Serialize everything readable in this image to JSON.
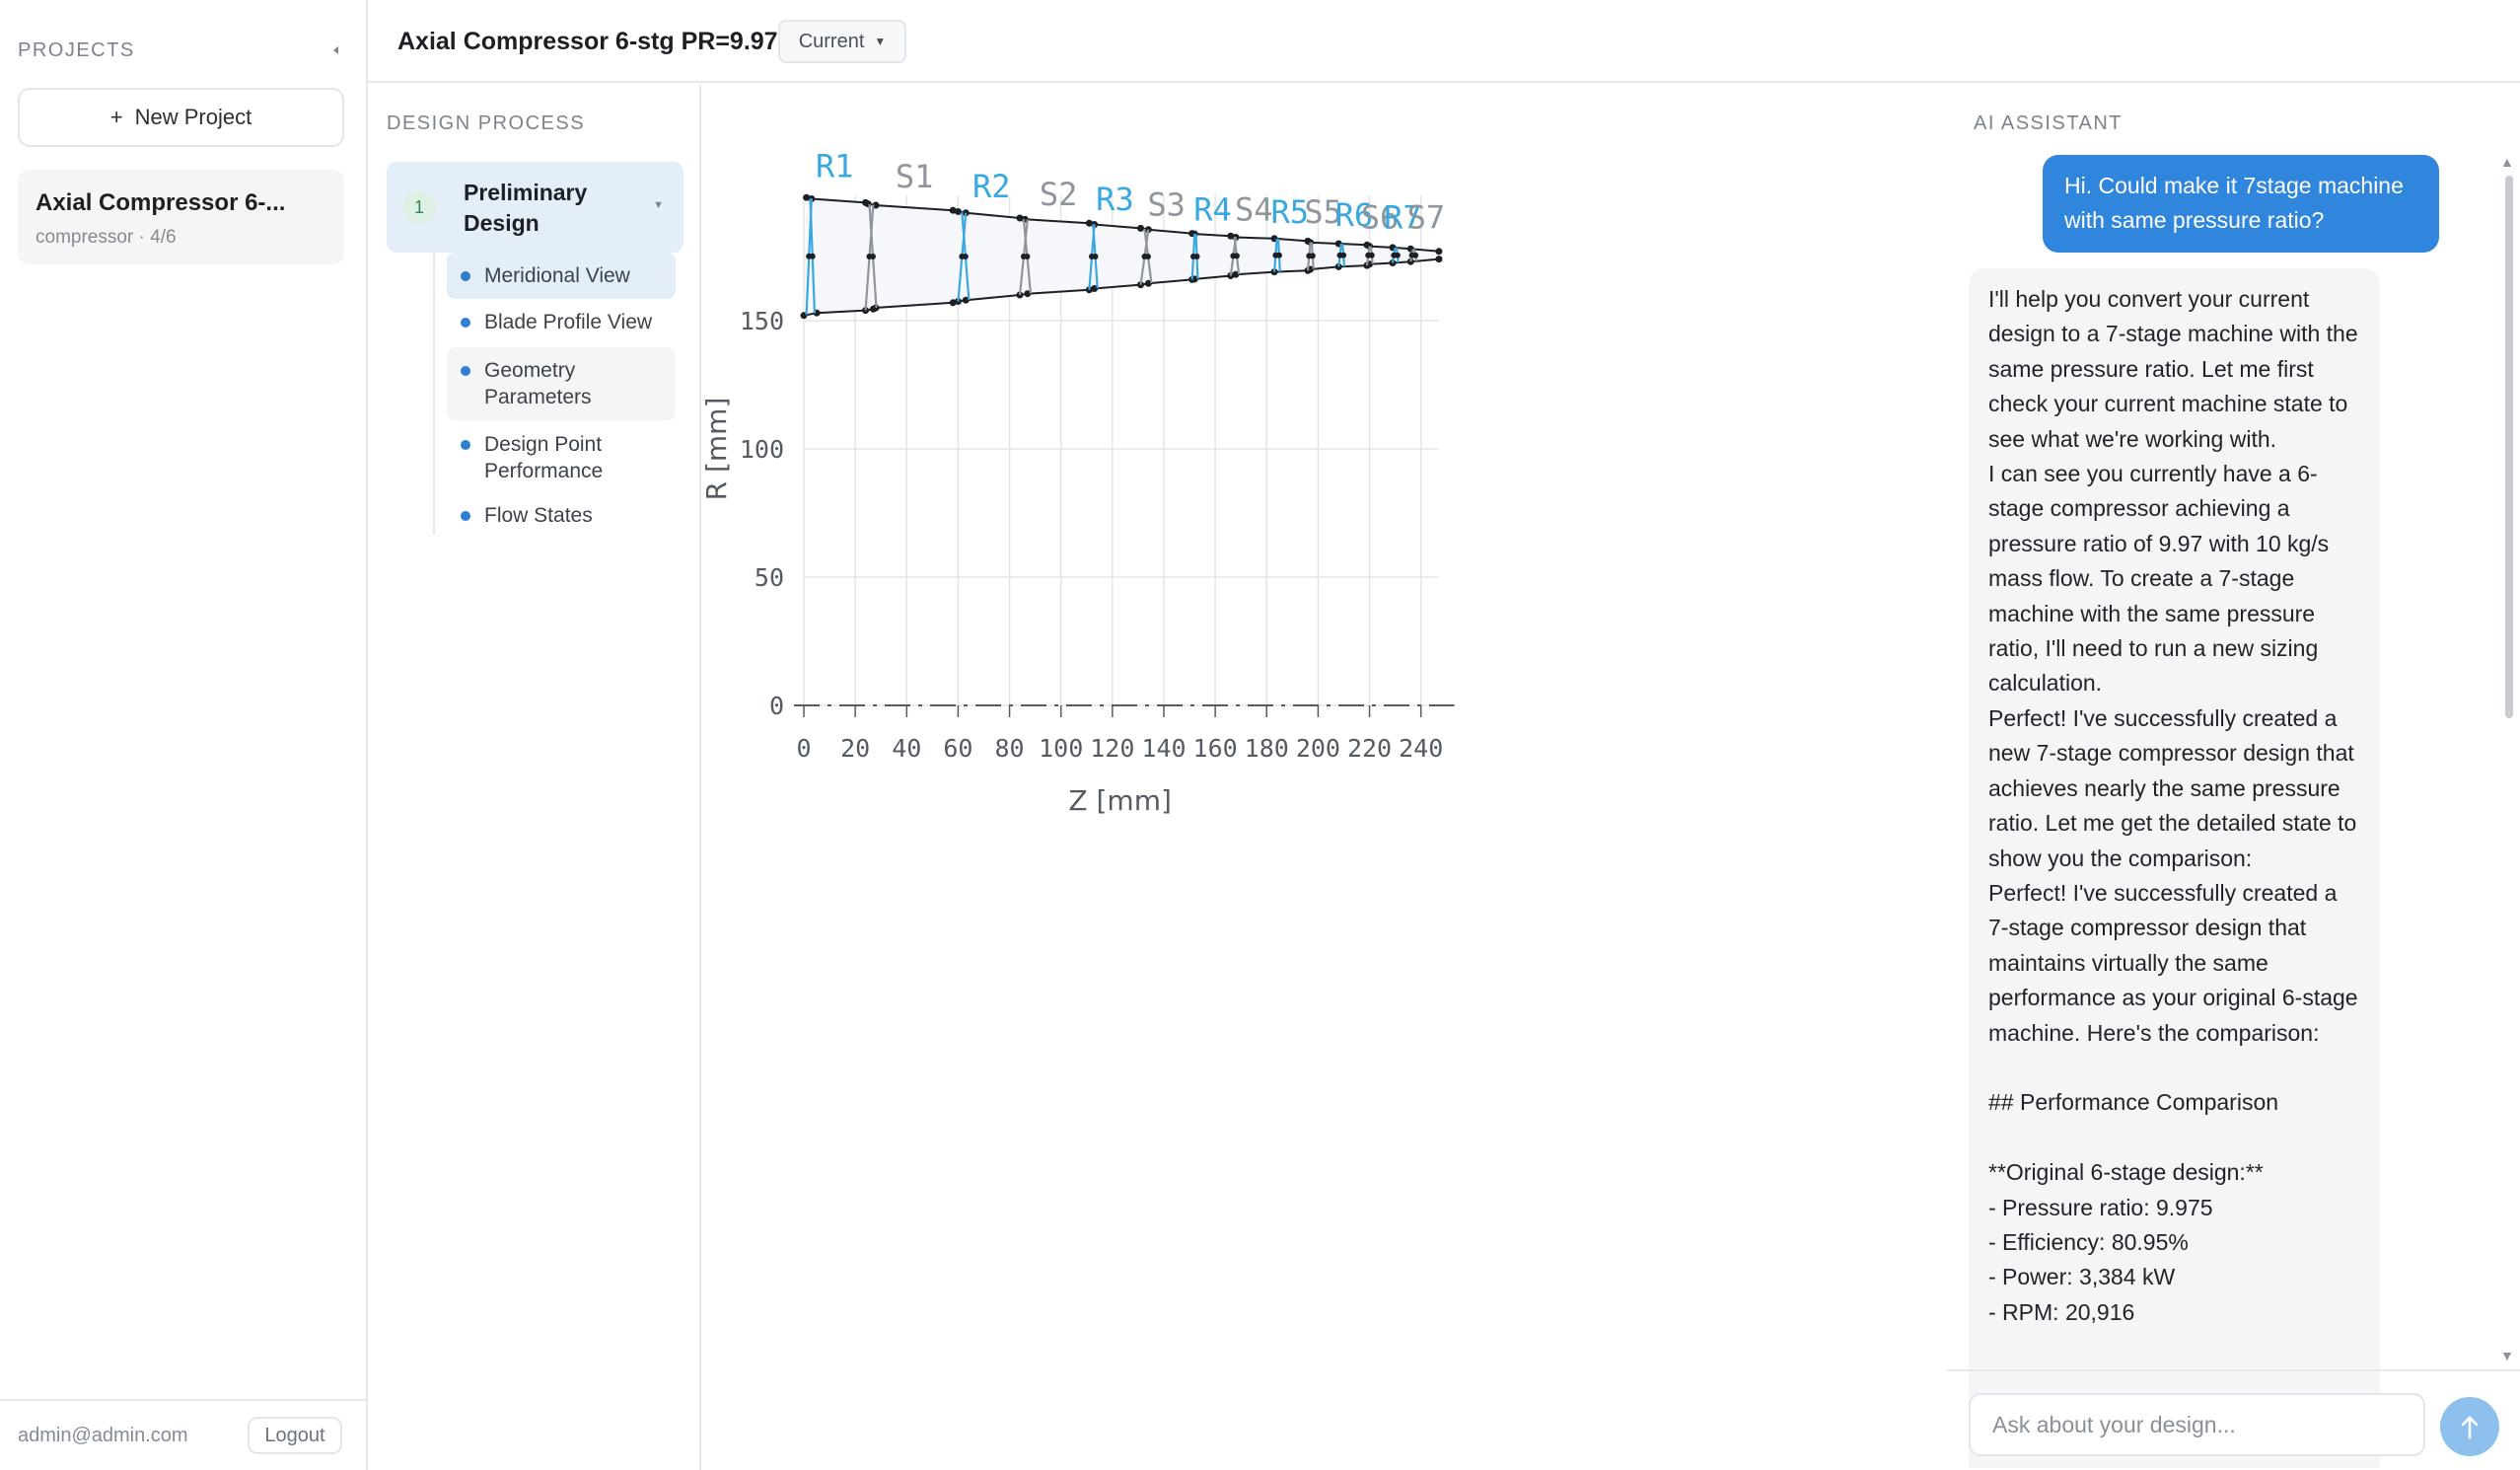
{
  "sidebar": {
    "title": "PROJECTS",
    "new_project_label": "New Project",
    "project": {
      "name": "Axial Compressor 6-...",
      "meta": "compressor · 4/6"
    },
    "user_email": "admin@admin.com",
    "logout_label": "Logout"
  },
  "topbar": {
    "title": "Axial Compressor 6-stg PR=9.97",
    "version": "Current"
  },
  "process": {
    "title": "DESIGN PROCESS",
    "stage": {
      "number": "1",
      "label": "Preliminary Design"
    },
    "items": [
      {
        "label": "Meridional View"
      },
      {
        "label": "Blade Profile View"
      },
      {
        "label": "Geometry Parameters"
      },
      {
        "label": "Design Point Performance"
      },
      {
        "label": "Flow States"
      }
    ]
  },
  "chart_data": {
    "type": "line",
    "title": "",
    "xlabel": "Z [mm]",
    "ylabel": "R [mm]",
    "xlim": [
      0,
      240
    ],
    "ylim": [
      0,
      150
    ],
    "xticks": [
      0,
      20,
      40,
      60,
      80,
      100,
      120,
      140,
      160,
      180,
      200,
      220,
      240
    ],
    "yticks": [
      0,
      50,
      100,
      150
    ],
    "grid": true,
    "colors": {
      "rotor": "#3aa8e0",
      "stator": "#8f959d",
      "annulus": "#1c1f24",
      "fill": "#f5f7fb"
    },
    "hub": [
      [
        0,
        152
      ],
      [
        5,
        153
      ],
      [
        24,
        154
      ],
      [
        27,
        154.5
      ],
      [
        28,
        155
      ],
      [
        58,
        157
      ],
      [
        60,
        157.5
      ],
      [
        63,
        158
      ],
      [
        84,
        160
      ],
      [
        87,
        160.5
      ],
      [
        111,
        162
      ],
      [
        113,
        162.5
      ],
      [
        131,
        164
      ],
      [
        134,
        164.5
      ],
      [
        151,
        166
      ],
      [
        152,
        166.2
      ],
      [
        166,
        167.5
      ],
      [
        168,
        168
      ],
      [
        183,
        169
      ],
      [
        196,
        169.5
      ],
      [
        197,
        170
      ],
      [
        208,
        171
      ],
      [
        219,
        171.5
      ],
      [
        220,
        172
      ],
      [
        229,
        172.5
      ],
      [
        236,
        173
      ],
      [
        247,
        174
      ]
    ],
    "shroud": [
      [
        1,
        198
      ],
      [
        3,
        197.5
      ],
      [
        24,
        196
      ],
      [
        25,
        195.5
      ],
      [
        28,
        195
      ],
      [
        58,
        193
      ],
      [
        60,
        192.5
      ],
      [
        63,
        192
      ],
      [
        84,
        190
      ],
      [
        86,
        189.5
      ],
      [
        111,
        188
      ],
      [
        113,
        187.5
      ],
      [
        131,
        186
      ],
      [
        134,
        185.5
      ],
      [
        151,
        184
      ],
      [
        152,
        183.8
      ],
      [
        166,
        183
      ],
      [
        168,
        182.5
      ],
      [
        183,
        182
      ],
      [
        196,
        181
      ],
      [
        197,
        180.5
      ],
      [
        208,
        180
      ],
      [
        219,
        179.5
      ],
      [
        220,
        179
      ],
      [
        229,
        178.5
      ],
      [
        236,
        178
      ],
      [
        247,
        177
      ]
    ],
    "rows": [
      {
        "name": "R1",
        "kind": "rotor",
        "z_le": 1,
        "z_te": 3
      },
      {
        "name": "S1",
        "kind": "stator",
        "z_le": 24,
        "z_te": 27
      },
      {
        "name": "R2",
        "kind": "rotor",
        "z_le": 60,
        "z_te": 63
      },
      {
        "name": "S2",
        "kind": "stator",
        "z_le": 84,
        "z_te": 87
      },
      {
        "name": "R3",
        "kind": "rotor",
        "z_le": 111,
        "z_te": 113
      },
      {
        "name": "S3",
        "kind": "stator",
        "z_le": 131,
        "z_te": 134
      },
      {
        "name": "R4",
        "kind": "rotor",
        "z_le": 151,
        "z_te": 152
      },
      {
        "name": "S4",
        "kind": "stator",
        "z_le": 166,
        "z_te": 168
      },
      {
        "name": "R5",
        "kind": "rotor",
        "z_le": 183,
        "z_te": 184
      },
      {
        "name": "S5",
        "kind": "stator",
        "z_le": 196,
        "z_te": 197
      },
      {
        "name": "R6",
        "kind": "rotor",
        "z_le": 208,
        "z_te": 209
      },
      {
        "name": "S6",
        "kind": "stator",
        "z_le": 219,
        "z_te": 220
      },
      {
        "name": "R7",
        "kind": "rotor",
        "z_le": 229,
        "z_te": 230
      },
      {
        "name": "S7",
        "kind": "stator",
        "z_le": 236,
        "z_te": 237
      }
    ],
    "label_positions": [
      [
        12,
        206
      ],
      [
        43,
        202
      ],
      [
        73,
        198
      ],
      [
        99,
        195
      ],
      [
        121,
        193
      ],
      [
        141,
        191
      ],
      [
        159,
        189
      ],
      [
        175,
        189
      ],
      [
        189,
        188
      ],
      [
        202,
        188
      ],
      [
        214,
        187
      ],
      [
        224,
        186
      ],
      [
        233,
        186
      ],
      [
        242,
        186
      ]
    ]
  },
  "assistant": {
    "title": "AI ASSISTANT",
    "user_message": "Hi. Could make it 7stage machine with same pressure ratio?",
    "ai_message": "I'll help you convert your current design to a 7-stage machine with the same pressure ratio. Let me first check your current machine state to see what we're working with.\nI can see you currently have a 6-stage compressor achieving a pressure ratio of 9.97 with 10 kg/s mass flow. To create a 7-stage machine with the same pressure ratio, I'll need to run a new sizing calculation.\nPerfect! I've successfully created a new 7-stage compressor design that achieves nearly the same pressure ratio. Let me get the detailed state to show you the comparison:\nPerfect! I've successfully created a 7-stage compressor design that maintains virtually the same performance as your original 6-stage machine. Here's the comparison:\n\n## Performance Comparison\n\n**Original 6-stage design:**\n- Pressure ratio: 9.975\n- Efficiency: 80.95%\n- Power: 3,384 kW\n- RPM: 20,916",
    "input_placeholder": "Ask about your design..."
  }
}
